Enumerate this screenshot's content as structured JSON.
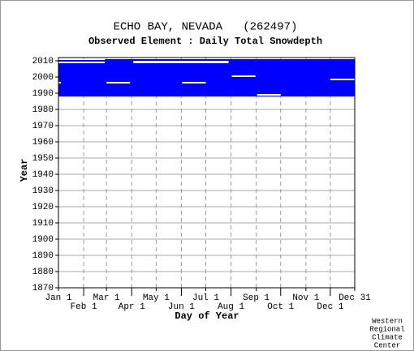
{
  "chart_data": {
    "type": "coverage",
    "title": "ECHO BAY, NEVADA   (262497)",
    "subtitle": "Observed Element : Daily Total Snowdepth",
    "x_label": "Day of Year",
    "y_label": "Year",
    "credit": [
      "Western",
      "Regional",
      "Climate",
      "Center"
    ],
    "xlim": [
      1,
      365
    ],
    "ylim": [
      1870,
      2012
    ],
    "xticks": [
      {
        "value": 1,
        "label": "Jan 1"
      },
      {
        "value": 32,
        "label": "Feb 1"
      },
      {
        "value": 60,
        "label": "Mar 1"
      },
      {
        "value": 91,
        "label": "Apr 1"
      },
      {
        "value": 121,
        "label": "May 1"
      },
      {
        "value": 152,
        "label": "Jun 1"
      },
      {
        "value": 182,
        "label": "Jul 1"
      },
      {
        "value": 213,
        "label": "Aug 1"
      },
      {
        "value": 244,
        "label": "Sep 1"
      },
      {
        "value": 274,
        "label": "Oct 1"
      },
      {
        "value": 305,
        "label": "Nov 1"
      },
      {
        "value": 335,
        "label": "Dec 1"
      },
      {
        "value": 365,
        "label": "Dec 31"
      }
    ],
    "yticks": [
      1870,
      1880,
      1890,
      1900,
      1910,
      1920,
      1930,
      1940,
      1950,
      1960,
      1970,
      1980,
      1990,
      2000,
      2010
    ],
    "grid": true,
    "color": "#0000ff",
    "gap_color": "#ffffff",
    "coverage": [
      {
        "days": [
          1,
          365
        ],
        "years": [
          1988,
          2011
        ]
      },
      {
        "days": [
          1,
          58
        ],
        "years": [
          2009.5,
          2010.5
        ]
      },
      {
        "days": [
          90,
          160
        ],
        "years": [
          2010,
          2011
        ]
      },
      {
        "days": [
          245,
          365
        ],
        "years": [
          2009.5,
          2011
        ]
      }
    ],
    "gaps": [
      {
        "days": [
          1,
          58
        ],
        "years": [
          2010.5,
          2011
        ]
      },
      {
        "days": [
          1,
          58
        ],
        "years": [
          2008.5,
          2009.5
        ]
      },
      {
        "days": [
          93,
          210
        ],
        "years": [
          2008.5,
          2010
        ]
      },
      {
        "days": [
          60,
          89
        ],
        "years": [
          1996,
          1997
        ]
      },
      {
        "days": [
          153,
          182
        ],
        "years": [
          1996,
          1997
        ]
      },
      {
        "days": [
          245,
          274
        ],
        "years": [
          1988.5,
          1989.5
        ]
      },
      {
        "days": [
          335,
          365
        ],
        "years": [
          1998,
          1999
        ]
      },
      {
        "days": [
          1,
          4
        ],
        "years": [
          1996,
          1997
        ]
      },
      {
        "days": [
          214,
          243
        ],
        "years": [
          2000,
          2001
        ]
      }
    ]
  }
}
